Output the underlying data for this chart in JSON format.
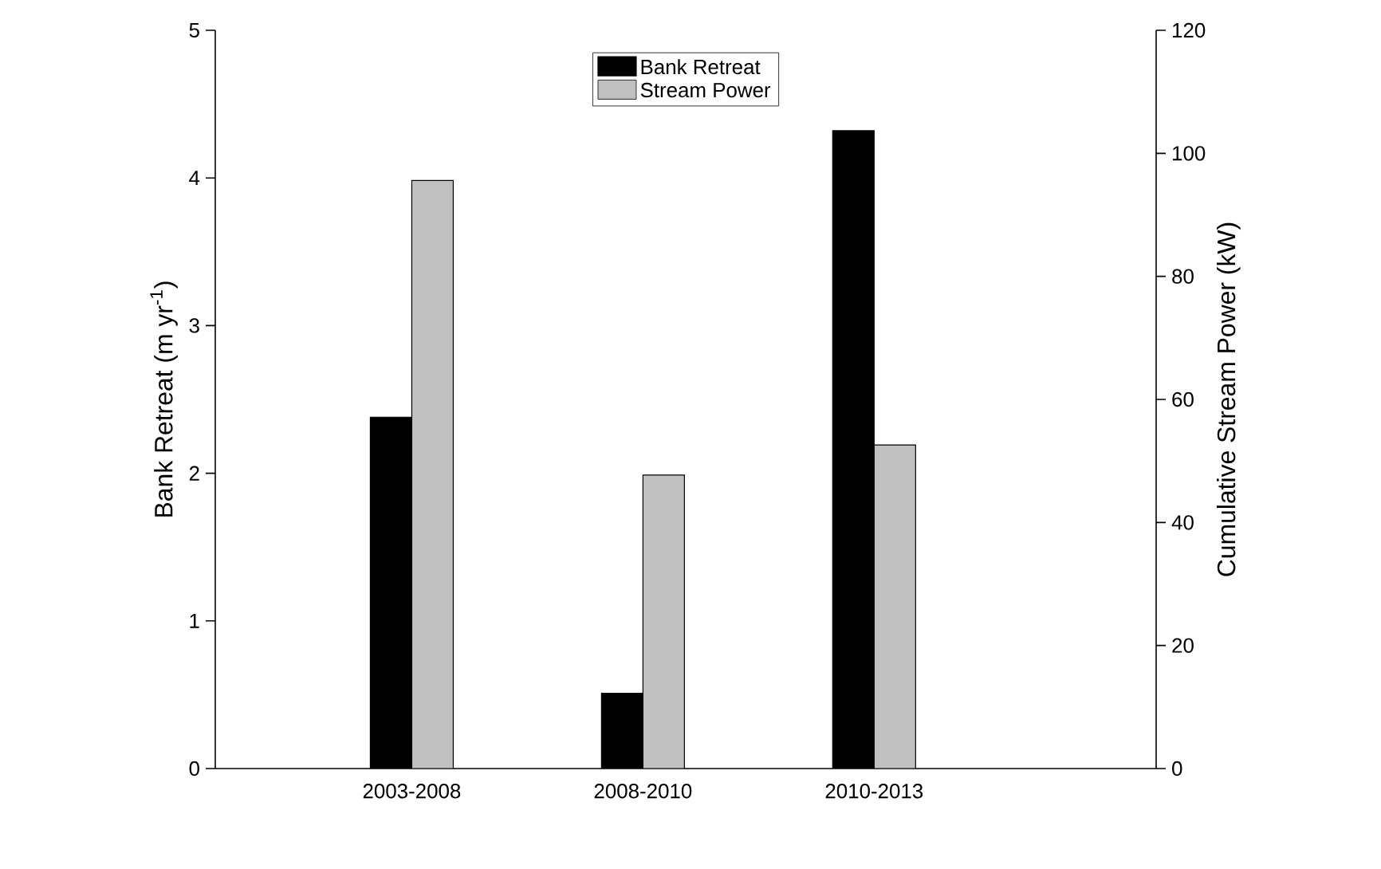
{
  "chart_data": {
    "type": "bar",
    "categories": [
      "2003-2008",
      "2008-2010",
      "2010-2013"
    ],
    "ylabel": "Bank Retreat (m yr$^{-1}$)",
    "y2label": "Cumulative Stream Power (kW)",
    "ylim": [
      0,
      5
    ],
    "yticks": [
      0,
      1,
      2,
      3,
      4,
      5
    ],
    "y2lim": [
      0,
      120
    ],
    "y2ticks": [
      0,
      20,
      40,
      60,
      80,
      100,
      120
    ],
    "legend": "top",
    "series": [
      {
        "name": "Bank Retreat",
        "color": "#000000",
        "values": [
          2.38,
          0.51,
          4.32
        ]
      },
      {
        "name": "Stream Power",
        "color": "#c0c0c0",
        "values": [
          95.6,
          47.7,
          52.6
        ],
        "axis": "y2"
      }
    ]
  }
}
